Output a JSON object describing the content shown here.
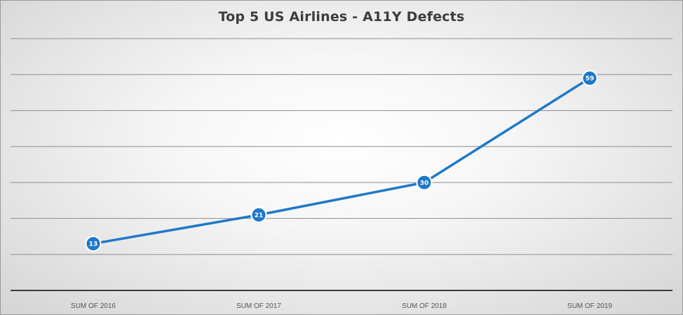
{
  "chart_data": {
    "type": "line",
    "title": "Top 5 US Airlines - A11Y Defects",
    "categories": [
      "SUM OF 2016",
      "SUM OF 2017",
      "SUM OF 2018",
      "SUM OF 2019"
    ],
    "series": [
      {
        "values": [
          13,
          21,
          30,
          59
        ],
        "color": "#1f78c8"
      }
    ],
    "ylim": [
      0,
      70
    ],
    "grid": true,
    "data_labels": true,
    "axis_color": "#3c3c3c",
    "grid_color": "#8c8c8c"
  }
}
